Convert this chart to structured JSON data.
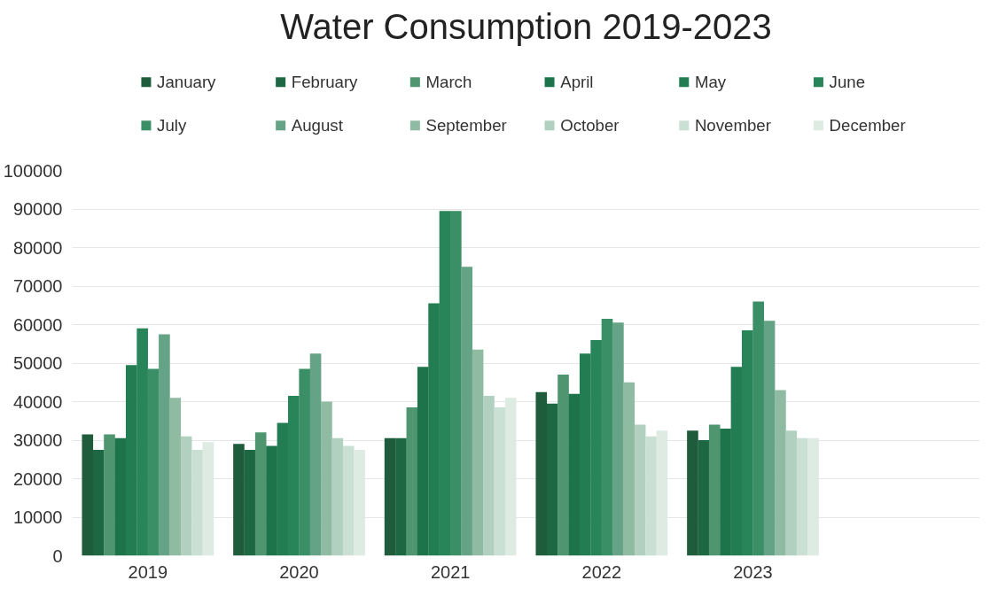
{
  "chart_data": {
    "type": "bar",
    "title": "Water Consumption 2019-2023",
    "categories": [
      "2019",
      "2020",
      "2021",
      "2022",
      "2023"
    ],
    "series": [
      {
        "name": "January",
        "color": "#1f5c3b",
        "values": [
          31500,
          29000,
          30500,
          42500,
          32500
        ]
      },
      {
        "name": "February",
        "color": "#1d6843",
        "values": [
          27500,
          27500,
          30500,
          39500,
          30000
        ]
      },
      {
        "name": "March",
        "color": "#4e9570",
        "values": [
          31500,
          32000,
          38500,
          47000,
          34000
        ]
      },
      {
        "name": "April",
        "color": "#1d744b",
        "values": [
          30500,
          28500,
          49000,
          42000,
          33000
        ]
      },
      {
        "name": "May",
        "color": "#227d53",
        "values": [
          49500,
          34500,
          65500,
          52500,
          49000
        ]
      },
      {
        "name": "June",
        "color": "#288559",
        "values": [
          59000,
          41500,
          89500,
          56000,
          58500
        ]
      },
      {
        "name": "July",
        "color": "#3a8f66",
        "values": [
          48500,
          48500,
          89500,
          61500,
          66000
        ]
      },
      {
        "name": "August",
        "color": "#64a385",
        "values": [
          57500,
          52500,
          75000,
          60500,
          61000
        ]
      },
      {
        "name": "September",
        "color": "#8fbba3",
        "values": [
          41000,
          40000,
          53500,
          45000,
          43000
        ]
      },
      {
        "name": "October",
        "color": "#b1d0bf",
        "values": [
          31000,
          30500,
          41500,
          34000,
          32500
        ]
      },
      {
        "name": "November",
        "color": "#cbe0d4",
        "values": [
          27500,
          28500,
          38500,
          31000,
          30500
        ]
      },
      {
        "name": "December",
        "color": "#deebe3",
        "values": [
          29500,
          27500,
          41000,
          32500,
          30500
        ]
      }
    ],
    "ylim": [
      0,
      100000
    ],
    "yticks": [
      0,
      10000,
      20000,
      30000,
      40000,
      50000,
      60000,
      70000,
      80000,
      90000,
      100000
    ],
    "grid": "y",
    "legend": "top"
  }
}
